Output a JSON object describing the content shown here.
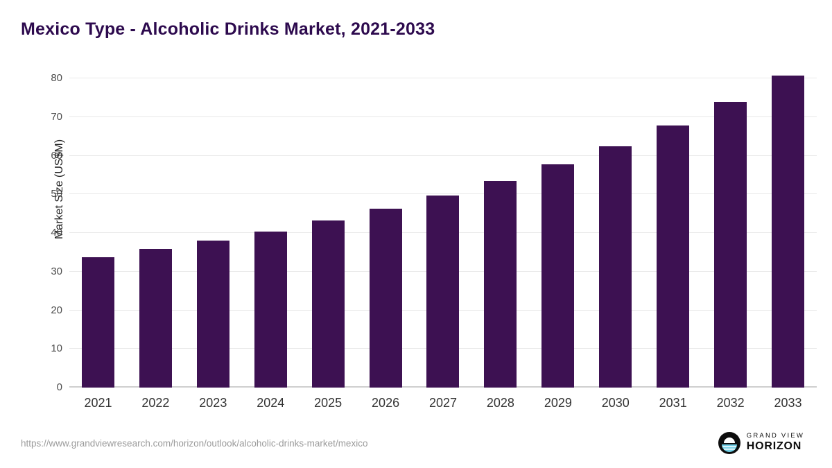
{
  "header": {
    "title": "Mexico Type - Alcoholic Drinks Market, 2021-2033"
  },
  "chart_data": {
    "type": "bar",
    "title": "Mexico Type - Alcoholic Drinks Market, 2021-2033",
    "categories": [
      "2021",
      "2022",
      "2023",
      "2024",
      "2025",
      "2026",
      "2027",
      "2028",
      "2029",
      "2030",
      "2031",
      "2032",
      "2033"
    ],
    "values": [
      33.8,
      35.9,
      38.0,
      40.4,
      43.2,
      46.2,
      49.6,
      53.4,
      57.8,
      62.4,
      67.8,
      73.9,
      80.7
    ],
    "xlabel": "",
    "ylabel": "Market Size (US$M)",
    "ylim": [
      0,
      80
    ],
    "yticks": [
      0,
      10,
      20,
      30,
      40,
      50,
      60,
      70,
      80
    ],
    "bar_color": "#3d1152",
    "grid": true,
    "legend_position": "none"
  },
  "footer": {
    "source_url": "https://www.grandviewresearch.com/horizon/outlook/alcoholic-drinks-market/mexico",
    "logo": {
      "line1": "GRAND VIEW",
      "line2": "HORIZON"
    }
  }
}
